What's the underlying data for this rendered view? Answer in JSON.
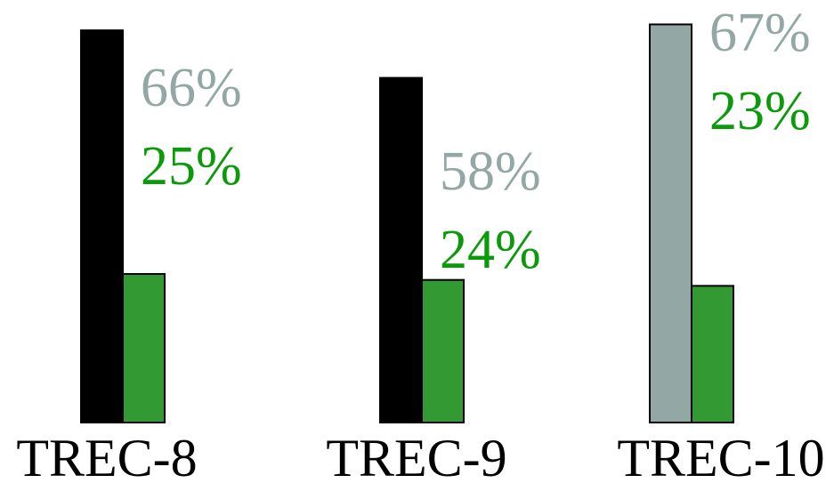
{
  "chart_data": {
    "type": "bar",
    "title": "",
    "xlabel": "",
    "ylabel": "",
    "ylim": [
      0,
      100
    ],
    "grid": false,
    "legend": "none",
    "categories": [
      "TREC-8",
      "TREC-9",
      "TREC-10"
    ],
    "series": [
      {
        "values": [
          66,
          58,
          67
        ],
        "labels": [
          "66%",
          "58%",
          "67%"
        ],
        "bar_colors": [
          "#000000",
          "#000000",
          "#93a8a5"
        ],
        "label_color": "#93a8a5"
      },
      {
        "values": [
          25,
          24,
          23
        ],
        "labels": [
          "25%",
          "24%",
          "23%"
        ],
        "bar_colors": [
          "#339933",
          "#339933",
          "#339933"
        ],
        "label_color": "#0a9a0a"
      }
    ]
  }
}
